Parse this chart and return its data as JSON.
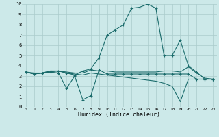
{
  "xlabel": "Humidex (Indice chaleur)",
  "xlim": [
    -0.5,
    23.5
  ],
  "ylim": [
    0,
    10
  ],
  "xticks": [
    0,
    1,
    2,
    3,
    4,
    5,
    6,
    7,
    8,
    9,
    10,
    11,
    12,
    13,
    14,
    15,
    16,
    17,
    18,
    19,
    20,
    21,
    22,
    23
  ],
  "yticks": [
    0,
    1,
    2,
    3,
    4,
    5,
    6,
    7,
    8,
    9,
    10
  ],
  "bg_color": "#cce9e9",
  "grid_color": "#aacccc",
  "line_color": "#1a6b6b",
  "lines": [
    {
      "x": [
        0,
        1,
        2,
        3,
        4,
        5,
        6,
        7,
        8,
        9,
        10,
        11,
        12,
        13,
        14,
        15,
        16,
        17,
        18,
        19,
        20,
        21,
        22,
        23
      ],
      "y": [
        3.4,
        3.2,
        3.3,
        3.5,
        3.5,
        3.3,
        3.1,
        3.5,
        3.7,
        4.8,
        7.0,
        7.5,
        8.0,
        9.6,
        9.7,
        10.0,
        9.6,
        5.0,
        5.0,
        6.5,
        4.0,
        3.4,
        2.7,
        2.7
      ],
      "marker": true
    },
    {
      "x": [
        0,
        1,
        2,
        3,
        4,
        5,
        6,
        7,
        8,
        9,
        10,
        11,
        12,
        13,
        14,
        15,
        16,
        17,
        18,
        19,
        20,
        21,
        22,
        23
      ],
      "y": [
        3.4,
        3.2,
        3.3,
        3.4,
        3.3,
        1.8,
        3.0,
        0.7,
        1.1,
        3.6,
        3.2,
        3.2,
        3.2,
        3.2,
        3.2,
        3.2,
        3.2,
        3.2,
        3.2,
        3.2,
        3.2,
        2.7,
        2.7,
        2.7
      ],
      "marker": true
    },
    {
      "x": [
        0,
        1,
        2,
        3,
        4,
        5,
        6,
        7,
        8,
        9,
        10,
        11,
        12,
        13,
        14,
        15,
        16,
        17,
        18,
        19,
        20,
        21,
        22,
        23
      ],
      "y": [
        3.4,
        3.3,
        3.3,
        3.5,
        3.5,
        3.4,
        3.3,
        3.3,
        3.6,
        3.5,
        3.5,
        3.4,
        3.4,
        3.4,
        3.4,
        3.4,
        3.4,
        3.5,
        3.5,
        3.4,
        3.9,
        3.3,
        2.8,
        2.7
      ],
      "marker": false
    },
    {
      "x": [
        0,
        1,
        2,
        3,
        4,
        5,
        6,
        7,
        8,
        9,
        10,
        11,
        12,
        13,
        14,
        15,
        16,
        17,
        18,
        19,
        20,
        21,
        22,
        23
      ],
      "y": [
        3.4,
        3.2,
        3.3,
        3.4,
        3.5,
        3.3,
        3.2,
        3.1,
        3.3,
        3.2,
        3.1,
        3.0,
        2.9,
        2.8,
        2.7,
        2.6,
        2.5,
        2.3,
        2.0,
        0.5,
        2.7,
        2.7,
        2.7,
        2.7
      ],
      "marker": false
    }
  ]
}
